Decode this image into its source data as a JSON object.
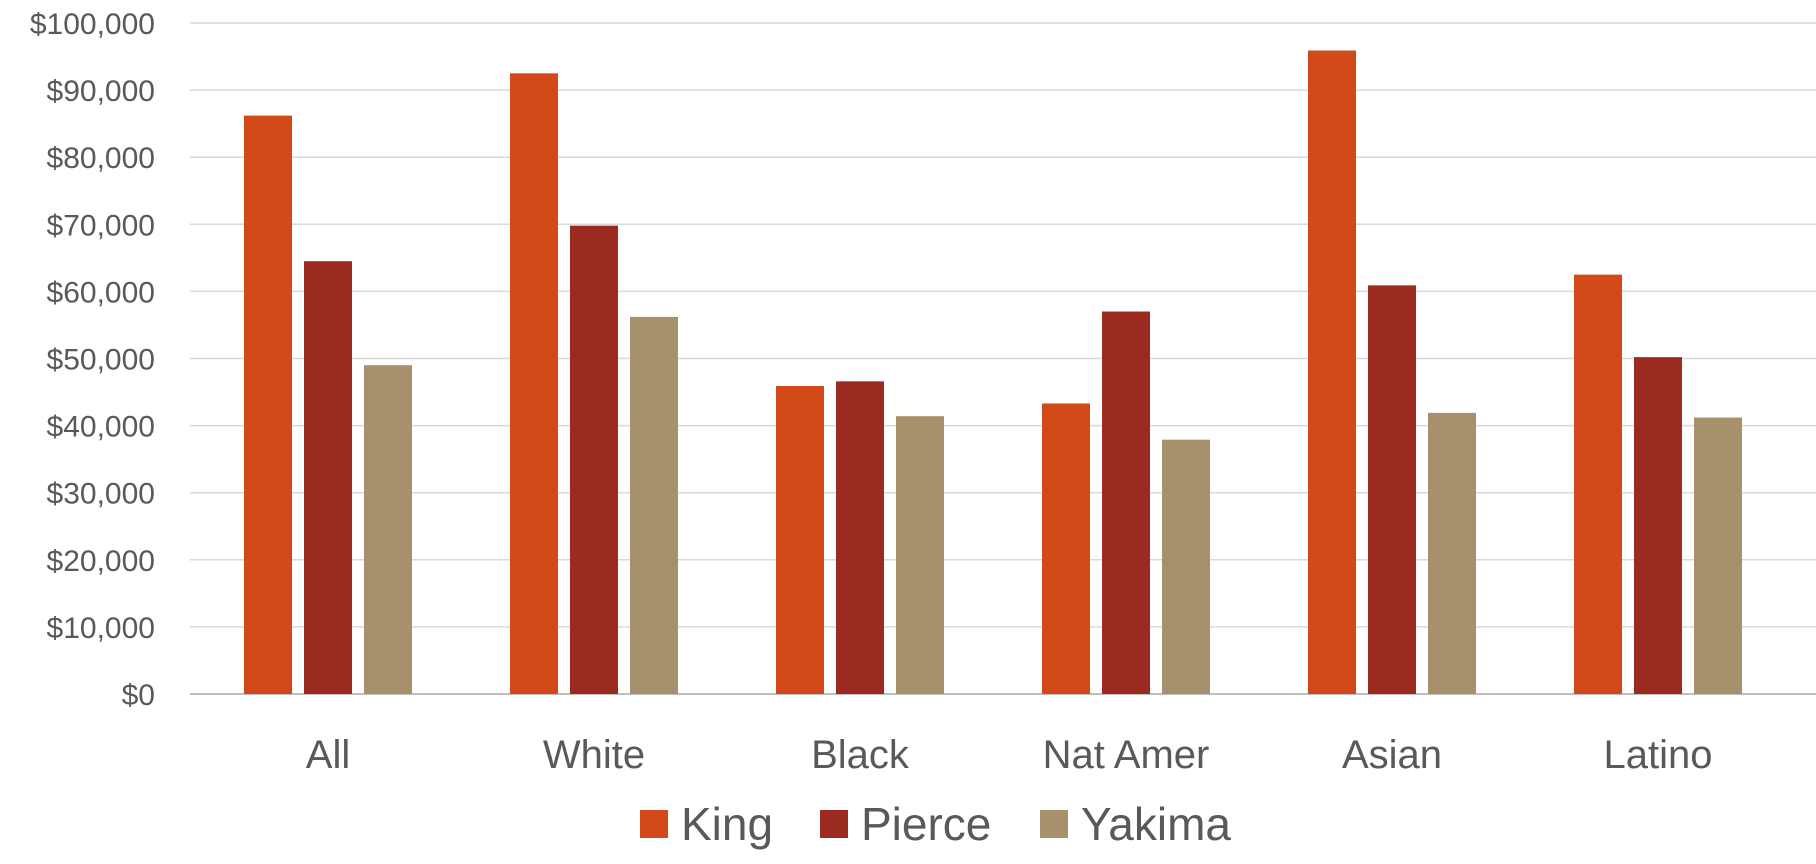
{
  "chart_data": {
    "type": "bar",
    "title": "",
    "xlabel": "",
    "ylabel": "",
    "ylim": [
      0,
      100000
    ],
    "y_tick_step": 10000,
    "y_tick_labels": [
      "$0",
      "$10,000",
      "$20,000",
      "$30,000",
      "$40,000",
      "$50,000",
      "$60,000",
      "$70,000",
      "$80,000",
      "$90,000",
      "$100,000"
    ],
    "grid": true,
    "legend_position": "bottom",
    "categories": [
      "All",
      "White",
      "Black",
      "Nat Amer",
      "Asian",
      "Latino"
    ],
    "series": [
      {
        "name": "King",
        "color": "#D24A18",
        "values": [
          86200,
          92500,
          45900,
          43300,
          95900,
          62500
        ]
      },
      {
        "name": "Pierce",
        "color": "#9B2B20",
        "values": [
          64500,
          69800,
          46600,
          57000,
          60900,
          50200
        ]
      },
      {
        "name": "Yakima",
        "color": "#A6916C",
        "values": [
          49000,
          56200,
          41400,
          37900,
          41900,
          41200
        ]
      }
    ]
  }
}
